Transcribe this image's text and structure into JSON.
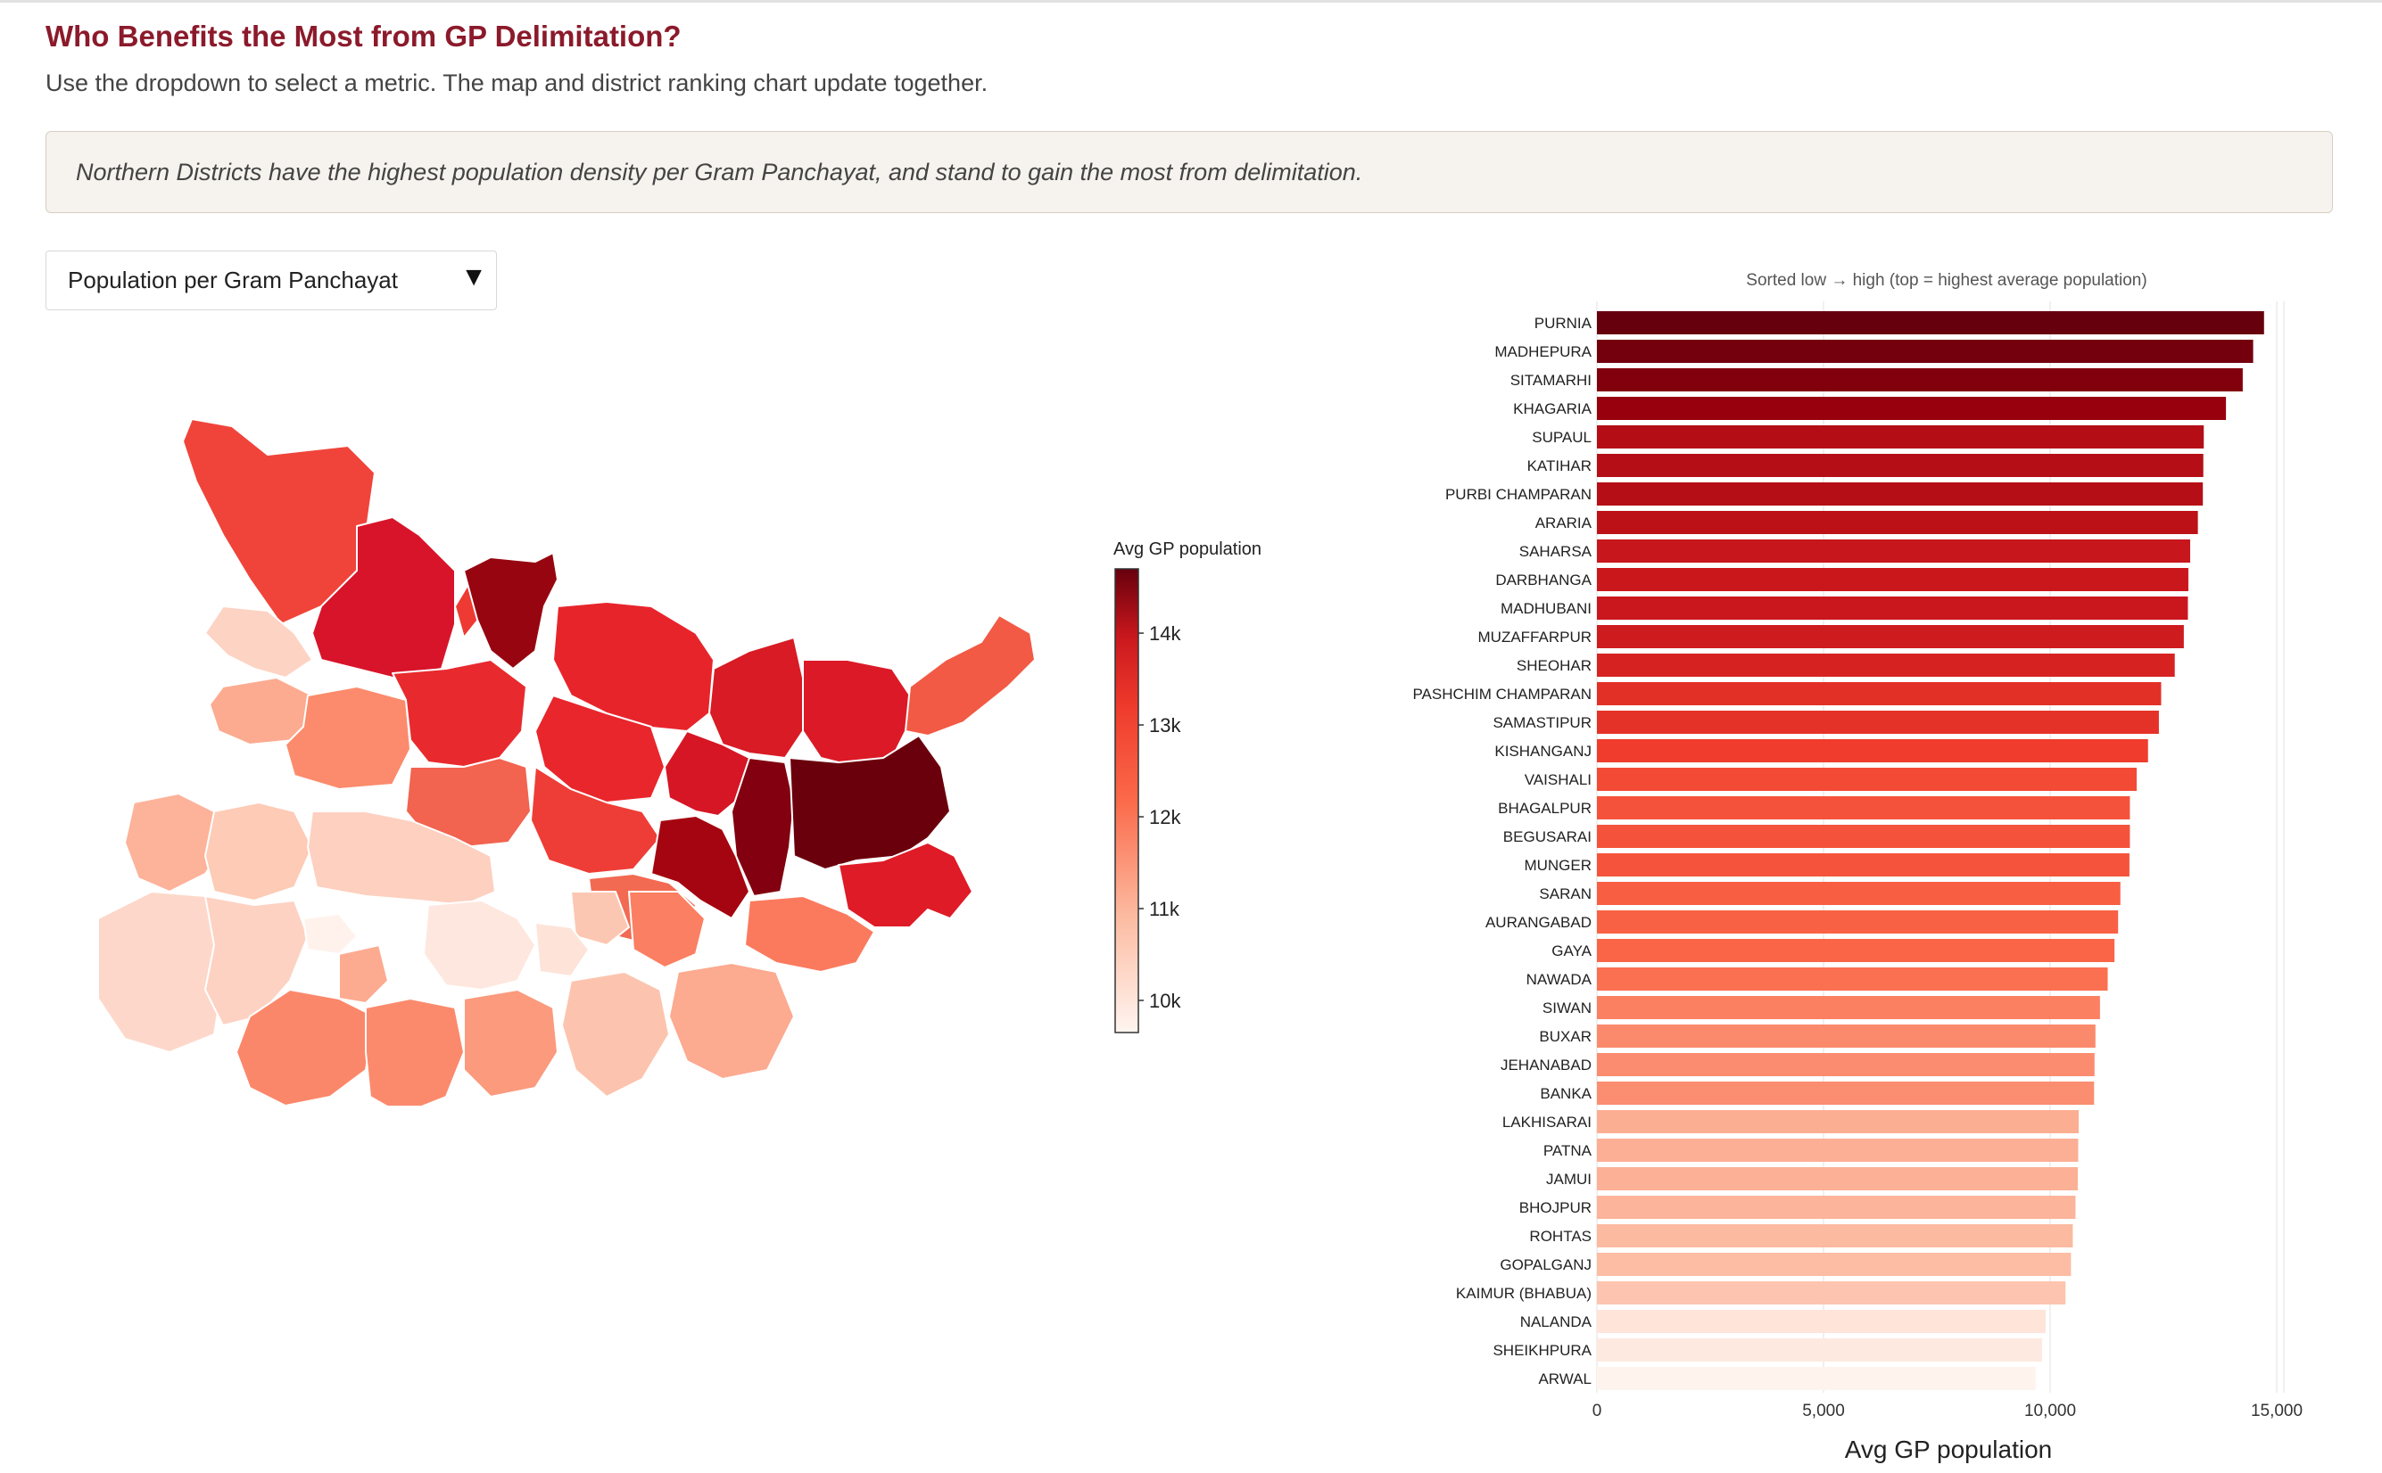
{
  "header": {
    "title": "Who Benefits the Most from GP Delimitation?",
    "subtitle": "Use the dropdown to select a metric. The map and district ranking chart update together."
  },
  "insight": {
    "text": "Northern Districts have the highest population density per Gram Panchayat, and stand to gain the most from delimitation."
  },
  "metric_select": {
    "selected": "Population per Gram Panchayat",
    "arrow_icon": "triangle-down-icon"
  },
  "colors": {
    "title": "#8b1a2b",
    "scale": [
      "#fff5f0",
      "#fcbba1",
      "#fb6a4a",
      "#ef3b2c",
      "#cb181d",
      "#99000d",
      "#67000d"
    ]
  },
  "legend": {
    "title": "Avg GP population",
    "ticks": [
      "14k",
      "13k",
      "12k",
      "11k",
      "10k"
    ],
    "tick_values": [
      14000,
      13000,
      12000,
      11000,
      10000
    ],
    "range": [
      9650,
      14700
    ]
  },
  "chart_data": {
    "type": "bar",
    "orientation": "horizontal",
    "subtitle": "Sorted low → high (top = highest average population)",
    "xlabel": "Avg GP population",
    "xlim": [
      0,
      15000
    ],
    "x_ticks": [
      0,
      5000,
      10000,
      15000
    ],
    "x_tick_labels": [
      "0",
      "5,000",
      "10,000",
      "15,000"
    ],
    "grid": true,
    "categories": [
      "PURNIA",
      "MADHEPURA",
      "SITAMARHI",
      "KHAGARIA",
      "SUPAUL",
      "KATIHAR",
      "PURBI CHAMPARAN",
      "ARARIA",
      "SAHARSA",
      "DARBHANGA",
      "MADHUBANI",
      "MUZAFFARPUR",
      "SHEOHAR",
      "PASHCHIM CHAMPARAN",
      "SAMASTIPUR",
      "KISHANGANJ",
      "VAISHALI",
      "BHAGALPUR",
      "BEGUSARAI",
      "MUNGER",
      "SARAN",
      "AURANGABAD",
      "GAYA",
      "NAWADA",
      "SIWAN",
      "BUXAR",
      "JEHANABAD",
      "BANKA",
      "LAKHISARAI",
      "PATNA",
      "JAMUI",
      "BHOJPUR",
      "ROHTAS",
      "GOPALGANJ",
      "KAIMUR (BHABUA)",
      "NALANDA",
      "SHEIKHPURA",
      "ARWAL"
    ],
    "values": [
      14720,
      14480,
      14250,
      13880,
      13390,
      13380,
      13370,
      13260,
      13090,
      13050,
      13040,
      12950,
      12750,
      12450,
      12400,
      12160,
      11910,
      11760,
      11760,
      11750,
      11550,
      11500,
      11420,
      11270,
      11100,
      11000,
      10980,
      10970,
      10630,
      10620,
      10610,
      10560,
      10500,
      10460,
      10340,
      9900,
      9820,
      9680
    ]
  }
}
